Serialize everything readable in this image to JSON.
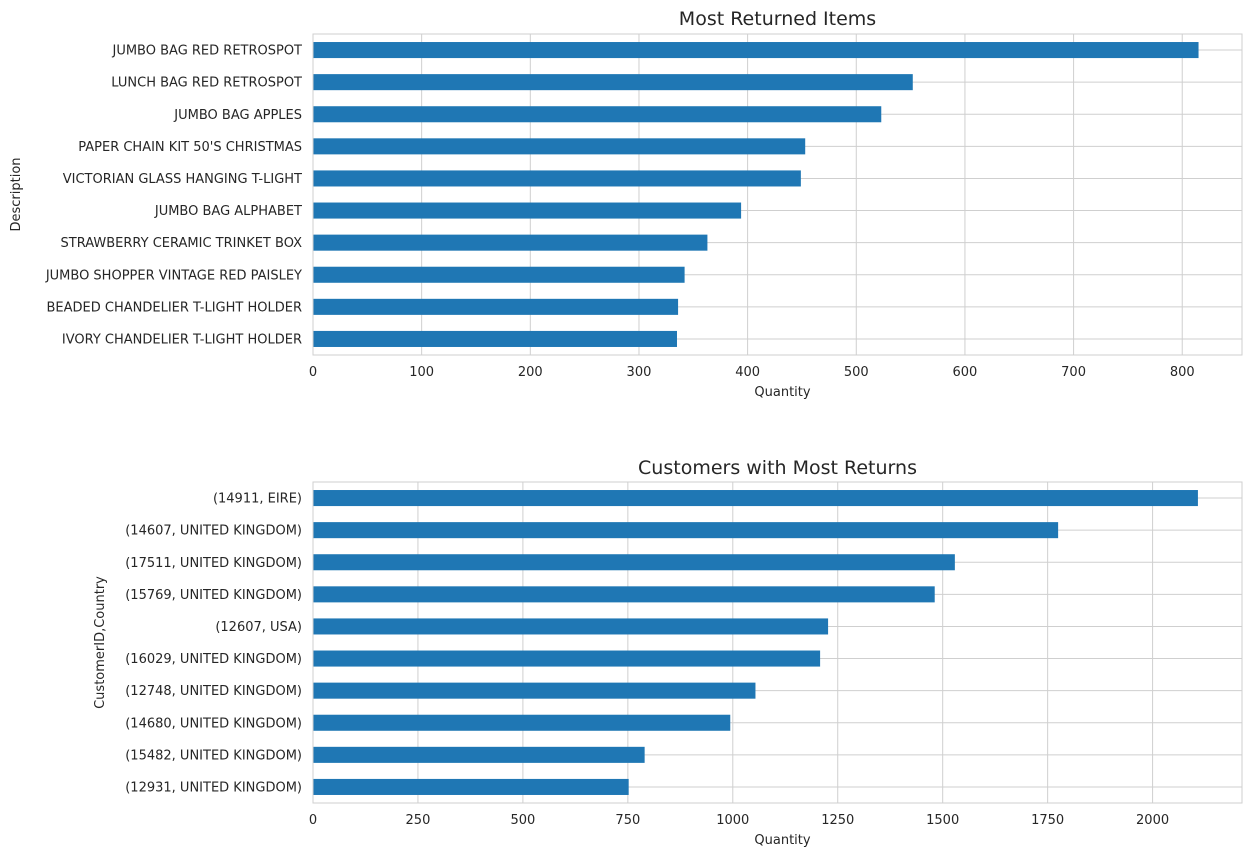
{
  "chart_data": [
    {
      "type": "bar",
      "orientation": "horizontal",
      "title": "Most Returned Items",
      "xlabel": "Quantity",
      "ylabel": "Description",
      "categories": [
        "JUMBO BAG RED RETROSPOT",
        "LUNCH BAG RED RETROSPOT",
        "JUMBO BAG APPLES",
        "PAPER CHAIN KIT 50'S CHRISTMAS",
        "VICTORIAN GLASS HANGING T-LIGHT",
        "JUMBO BAG ALPHABET",
        "STRAWBERRY CERAMIC TRINKET BOX",
        "JUMBO SHOPPER VINTAGE RED PAISLEY",
        "BEADED CHANDELIER T-LIGHT HOLDER",
        "IVORY CHANDELIER T-LIGHT HOLDER"
      ],
      "values": [
        815,
        552,
        523,
        453,
        449,
        394,
        363,
        342,
        336,
        335
      ],
      "xlim": [
        0,
        855
      ],
      "xticks": [
        0,
        100,
        200,
        300,
        400,
        500,
        600,
        700,
        800
      ],
      "color": "#1f77b4",
      "grid": true
    },
    {
      "type": "bar",
      "orientation": "horizontal",
      "title": "Customers with Most Returns",
      "xlabel": "Quantity",
      "ylabel": "CustomerID,Country",
      "categories": [
        "(14911, EIRE)",
        "(14607, UNITED KINGDOM)",
        "(17511, UNITED KINGDOM)",
        "(15769, UNITED KINGDOM)",
        "(12607, USA)",
        "(16029, UNITED KINGDOM)",
        "(12748, UNITED KINGDOM)",
        "(14680, UNITED KINGDOM)",
        "(15482, UNITED KINGDOM)",
        "(12931, UNITED KINGDOM)"
      ],
      "values": [
        2108,
        1775,
        1529,
        1481,
        1227,
        1208,
        1054,
        994,
        790,
        752
      ],
      "xlim": [
        0,
        2213
      ],
      "xticks": [
        0,
        250,
        500,
        750,
        1000,
        1250,
        1500,
        1750,
        2000
      ],
      "color": "#1f77b4",
      "grid": true
    }
  ]
}
